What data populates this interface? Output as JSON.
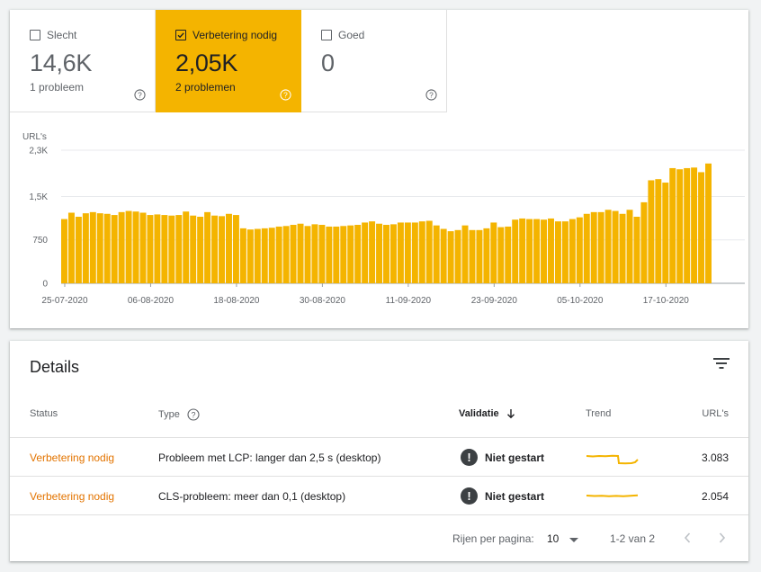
{
  "tiles": [
    {
      "label": "Slecht",
      "value": "14,6K",
      "sub": "1 probleem",
      "selected": false
    },
    {
      "label": "Verbetering nodig",
      "value": "2,05K",
      "sub": "2 problemen",
      "selected": true
    },
    {
      "label": "Goed",
      "value": "0",
      "sub": "",
      "selected": false
    }
  ],
  "chart_data": {
    "type": "bar",
    "ylabel": "URL's",
    "yticks": [
      "2,3K",
      "1,5K",
      "750",
      "0"
    ],
    "ylim": [
      0,
      2300
    ],
    "xticks": [
      "25-07-2020",
      "06-08-2020",
      "18-08-2020",
      "30-08-2020",
      "11-09-2020",
      "23-09-2020",
      "05-10-2020",
      "17-10-2020"
    ],
    "color": "#f4b400",
    "values": [
      1110,
      1220,
      1150,
      1210,
      1230,
      1210,
      1200,
      1180,
      1230,
      1250,
      1240,
      1220,
      1180,
      1190,
      1180,
      1170,
      1180,
      1240,
      1170,
      1150,
      1230,
      1170,
      1160,
      1200,
      1180,
      950,
      930,
      940,
      950,
      960,
      980,
      990,
      1010,
      1030,
      990,
      1020,
      1010,
      980,
      980,
      990,
      1000,
      1010,
      1050,
      1070,
      1030,
      1010,
      1020,
      1050,
      1050,
      1050,
      1070,
      1080,
      1000,
      940,
      900,
      920,
      1000,
      920,
      920,
      950,
      1050,
      970,
      980,
      1100,
      1120,
      1110,
      1110,
      1100,
      1120,
      1070,
      1070,
      1110,
      1140,
      1200,
      1230,
      1230,
      1270,
      1250,
      1200,
      1270,
      1150,
      1400,
      1780,
      1800,
      1740,
      1990,
      1970,
      1990,
      2000,
      1920,
      2070
    ]
  },
  "details": {
    "title": "Details",
    "columns": {
      "status": "Status",
      "type": "Type",
      "validation": "Validatie",
      "trend": "Trend",
      "urls": "URL's"
    },
    "rows": [
      {
        "status": "Verbetering nodig",
        "type": "Probleem met LCP: langer dan 2,5 s (desktop)",
        "validation": "Niet gestart",
        "urls": "3.083"
      },
      {
        "status": "Verbetering nodig",
        "type": "CLS-probleem: meer dan 0,1 (desktop)",
        "validation": "Niet gestart",
        "urls": "2.054"
      }
    ],
    "footer": {
      "rows_per_page_label": "Rijen per pagina:",
      "rows_per_page_value": "10",
      "range": "1-2 van 2"
    }
  },
  "colors": {
    "accent": "#f4b400",
    "status": "#e37400"
  }
}
